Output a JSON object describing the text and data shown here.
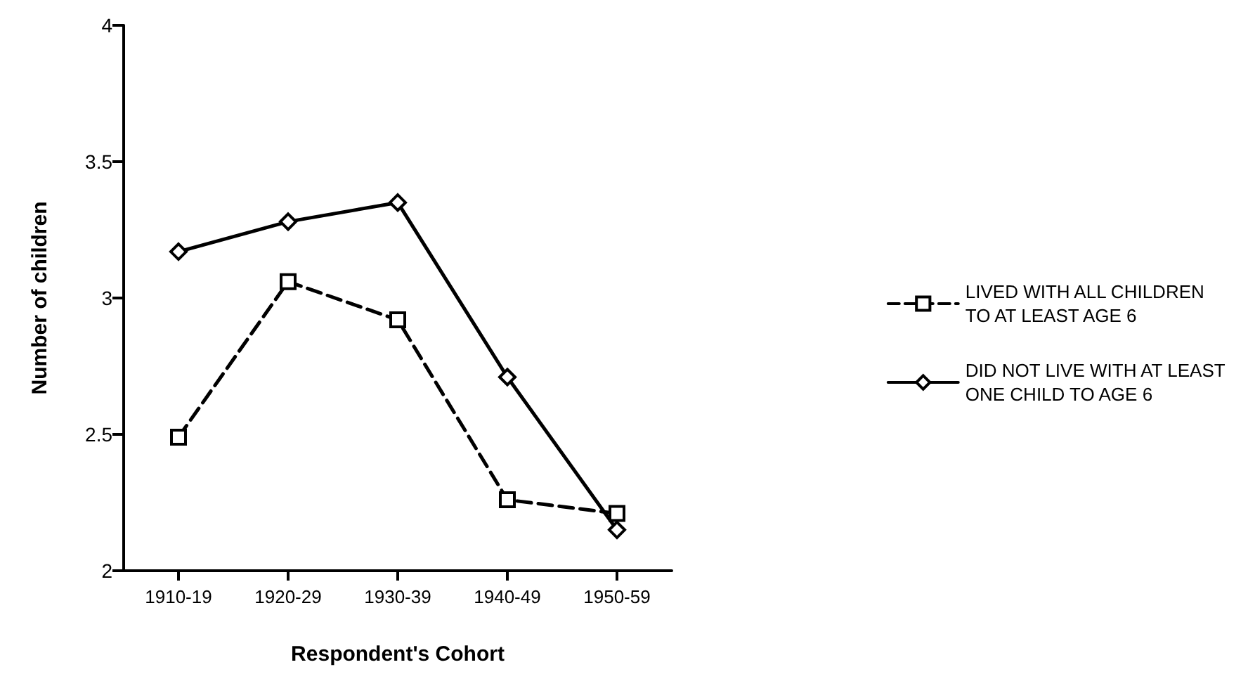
{
  "chart_data": {
    "type": "line",
    "xlabel": "Respondent's Cohort",
    "ylabel": "Number of children",
    "categories": [
      "1910-19",
      "1920-29",
      "1930-39",
      "1940-49",
      "1950-59"
    ],
    "series": [
      {
        "name": "LIVED WITH ALL CHILDREN\nTO AT LEAST AGE 6",
        "color": "#000000",
        "marker": "square",
        "line_style": "dashed",
        "values": [
          2.49,
          3.06,
          2.92,
          2.26,
          2.21
        ]
      },
      {
        "name": "DID NOT LIVE WITH AT LEAST\nONE CHILD TO AGE 6",
        "color": "#000000",
        "marker": "diamond",
        "line_style": "solid",
        "values": [
          3.17,
          3.28,
          3.35,
          2.71,
          2.15
        ]
      }
    ],
    "ylim": [
      2,
      4
    ],
    "yticks": [
      2,
      2.5,
      3,
      3.5,
      4
    ],
    "grid": false,
    "legend": "right"
  }
}
